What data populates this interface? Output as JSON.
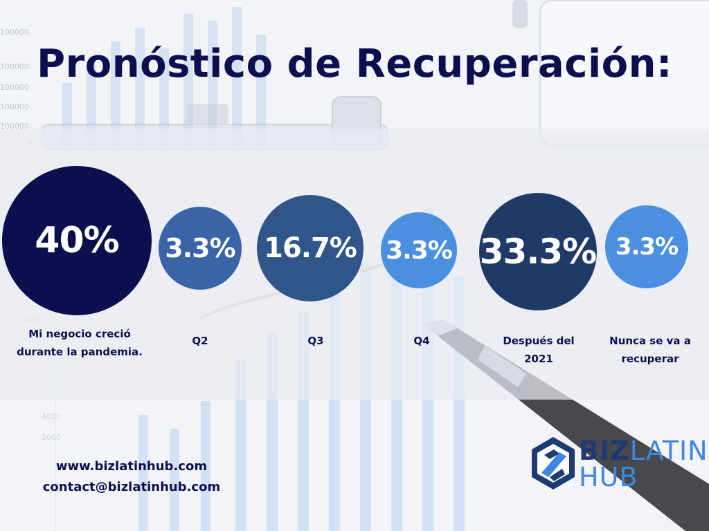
{
  "title": "Pronóstico de Recuperación:",
  "colors": {
    "title": "#0b0f4f",
    "navy": "#0a0f4e",
    "mid_blue": "#3a64a8",
    "steel_blue": "#2f5589",
    "light_blue": "#4a8fe0",
    "dark_slate": "#1f3a66"
  },
  "chart_data": {
    "type": "bubble",
    "unit": "%",
    "categories": [
      "Mi negocio creció durante la pandemia.",
      "Q2",
      "Q3",
      "Q4",
      "Después del 2021",
      "Nunca se va a recuperar"
    ],
    "values": [
      40,
      3.3,
      16.7,
      3.3,
      33.3,
      3.3
    ],
    "display_values": [
      "40%",
      "3.3%",
      "16.7%",
      "3.3%",
      "33.3%",
      "3.3%"
    ],
    "series_colors": [
      "#0a0f4e",
      "#3a64a8",
      "#2f5589",
      "#4a8fe0",
      "#1f3a66",
      "#4a8fe0"
    ],
    "title": "Pronóstico de Recuperación:",
    "xlabel": "",
    "ylabel": ""
  },
  "contact": {
    "website": "www.bizlatinhub.com",
    "email": "contact@bizlatinhub.com"
  },
  "logo": {
    "icon": "biz-latin-hub-logo-icon",
    "word1": "BIZ",
    "word2": "LATIN",
    "word3": "HUB"
  }
}
